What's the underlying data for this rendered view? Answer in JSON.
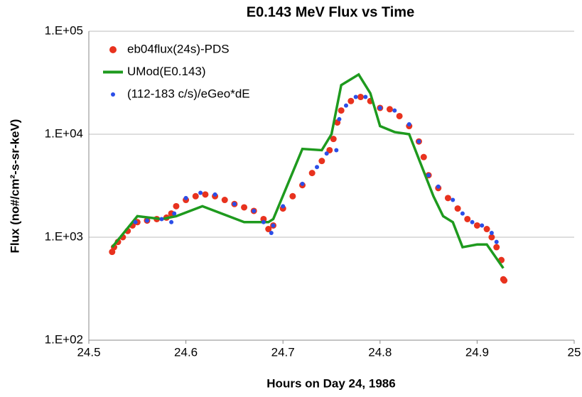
{
  "chart_data": {
    "type": "scatter",
    "title": "E0.143 MeV Flux vs Time",
    "xlabel": "Hours on Day 24, 1986",
    "ylabel": "Flux (no#/cm²-s-sr-keV)",
    "xlim": [
      24.5,
      25
    ],
    "xticks": [
      24.5,
      24.6,
      24.7,
      24.8,
      24.9,
      25
    ],
    "ylim": [
      100,
      100000
    ],
    "log_y": true,
    "yticks": [
      {
        "value": 100,
        "label": "1.E+02"
      },
      {
        "value": 1000,
        "label": "1.E+03"
      },
      {
        "value": 10000,
        "label": "1.E+04"
      },
      {
        "value": 100000,
        "label": "1.E+05"
      }
    ],
    "grid": true,
    "legend": "upper left",
    "series": [
      {
        "name": "eb04flux(24s)-PDS",
        "color": "#e8321e",
        "style": "marker",
        "x": [
          24.524,
          24.526,
          24.53,
          24.535,
          24.54,
          24.545,
          24.55,
          24.56,
          24.57,
          24.58,
          24.585,
          24.59,
          24.6,
          24.61,
          24.62,
          24.63,
          24.64,
          24.65,
          24.66,
          24.67,
          24.68,
          24.685,
          24.69,
          24.7,
          24.71,
          24.72,
          24.73,
          24.74,
          24.748,
          24.752,
          24.756,
          24.76,
          24.77,
          24.78,
          24.79,
          24.8,
          24.81,
          24.82,
          24.83,
          24.84,
          24.845,
          24.85,
          24.86,
          24.87,
          24.88,
          24.89,
          24.9,
          24.91,
          24.915,
          24.92,
          24.925,
          24.927,
          24.928
        ],
        "values": [
          720,
          800,
          900,
          1000,
          1150,
          1300,
          1400,
          1450,
          1500,
          1550,
          1700,
          2000,
          2300,
          2500,
          2600,
          2500,
          2300,
          2100,
          1950,
          1800,
          1500,
          1200,
          1300,
          1900,
          2500,
          3200,
          4200,
          5500,
          7000,
          9000,
          13000,
          17000,
          21000,
          23000,
          21000,
          18000,
          17500,
          15000,
          12000,
          8500,
          6000,
          4000,
          3000,
          2400,
          1900,
          1500,
          1300,
          1200,
          1000,
          800,
          600,
          390,
          380
        ]
      },
      {
        "name": "UMod(E0.143)",
        "color": "#1e9a1e",
        "style": "line",
        "x": [
          24.524,
          24.55,
          24.575,
          24.59,
          24.617,
          24.66,
          24.685,
          24.69,
          24.72,
          24.74,
          24.75,
          24.76,
          24.778,
          24.79,
          24.8,
          24.815,
          24.83,
          24.855,
          24.865,
          24.875,
          24.885,
          24.9,
          24.91,
          24.927
        ],
        "values": [
          800,
          1600,
          1500,
          1600,
          2000,
          1400,
          1400,
          1500,
          7200,
          7000,
          10000,
          30000,
          38000,
          25000,
          12000,
          10500,
          10000,
          2500,
          1600,
          1400,
          800,
          850,
          850,
          500
        ]
      },
      {
        "name": "(112-183 c/s)/eGeo*dE",
        "color": "#2b4ee8",
        "style": "marker",
        "x": [
          24.548,
          24.56,
          24.575,
          24.585,
          24.588,
          24.6,
          24.615,
          24.63,
          24.65,
          24.67,
          24.68,
          24.688,
          24.69,
          24.7,
          24.72,
          24.735,
          24.745,
          24.755,
          24.758,
          24.765,
          24.775,
          24.785,
          24.8,
          24.815,
          24.83,
          24.84,
          24.85,
          24.86,
          24.875,
          24.885,
          24.895,
          24.905,
          24.915,
          24.92
        ],
        "values": [
          1400,
          1450,
          1500,
          1400,
          1700,
          2400,
          2700,
          2600,
          2100,
          1800,
          1400,
          1100,
          1300,
          2000,
          3300,
          4800,
          6500,
          7000,
          14000,
          19000,
          23000,
          23000,
          18000,
          17000,
          12500,
          8500,
          4000,
          3100,
          2300,
          1700,
          1400,
          1300,
          1100,
          900
        ]
      }
    ]
  }
}
